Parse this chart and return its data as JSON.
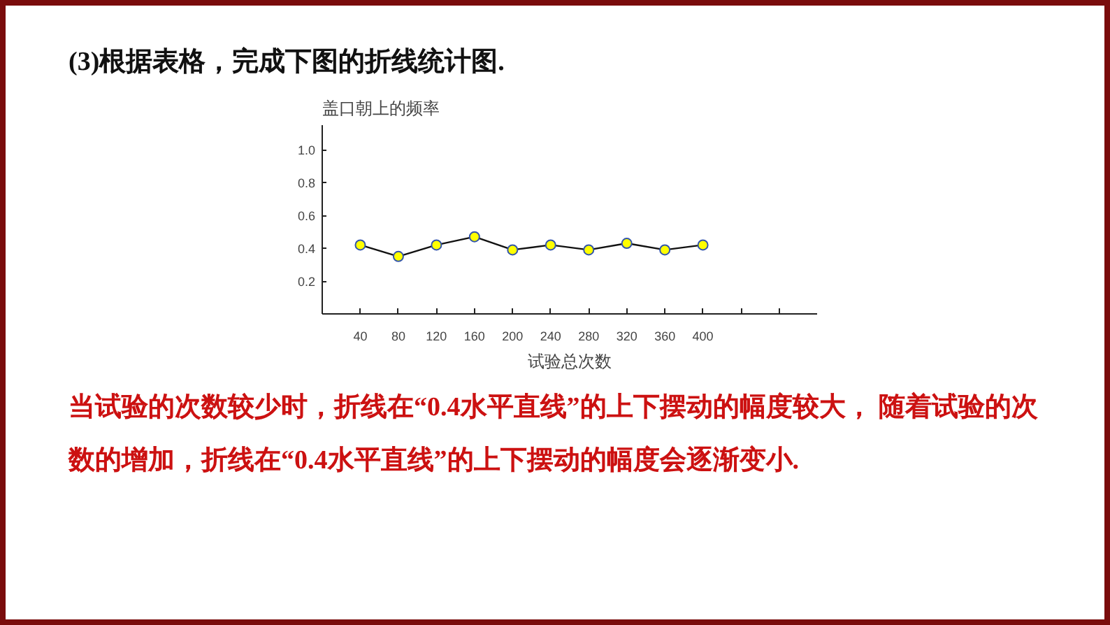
{
  "chart_data": {
    "type": "line",
    "title": "(3)根据表格，完成下图的折线统计图.",
    "ylabel": "盖口朝上的频率",
    "xlabel": "试验总次数",
    "annotations": [
      "当试验的次数较少时，折线在“0.4水平直线”的上下摆动的幅度较大， 随着试验的次数的增加，折线在“0.4水平直线”的上下摆动的幅度会逐渐变小."
    ],
    "x": [
      40,
      80,
      120,
      160,
      200,
      240,
      280,
      320,
      360,
      400
    ],
    "series": [
      {
        "color": "#ffff00",
        "values": [
          0.42,
          0.35,
          0.42,
          0.47,
          0.39,
          0.42,
          0.39,
          0.43,
          0.39,
          0.42
        ]
      }
    ],
    "xlim": [
      0,
      520
    ],
    "xticks": [
      40,
      80,
      120,
      160,
      200,
      240,
      280,
      320,
      360,
      400,
      {
        "value": 440,
        "label": null
      },
      {
        "value": 480,
        "label": null
      }
    ],
    "ylim": [
      0,
      1.15
    ],
    "yticks": [
      0.2,
      0.4,
      0.6,
      0.8,
      {
        "value": 1,
        "label": "1.0"
      }
    ],
    "grid": false,
    "marker": "circle",
    "line_style": "solid"
  }
}
